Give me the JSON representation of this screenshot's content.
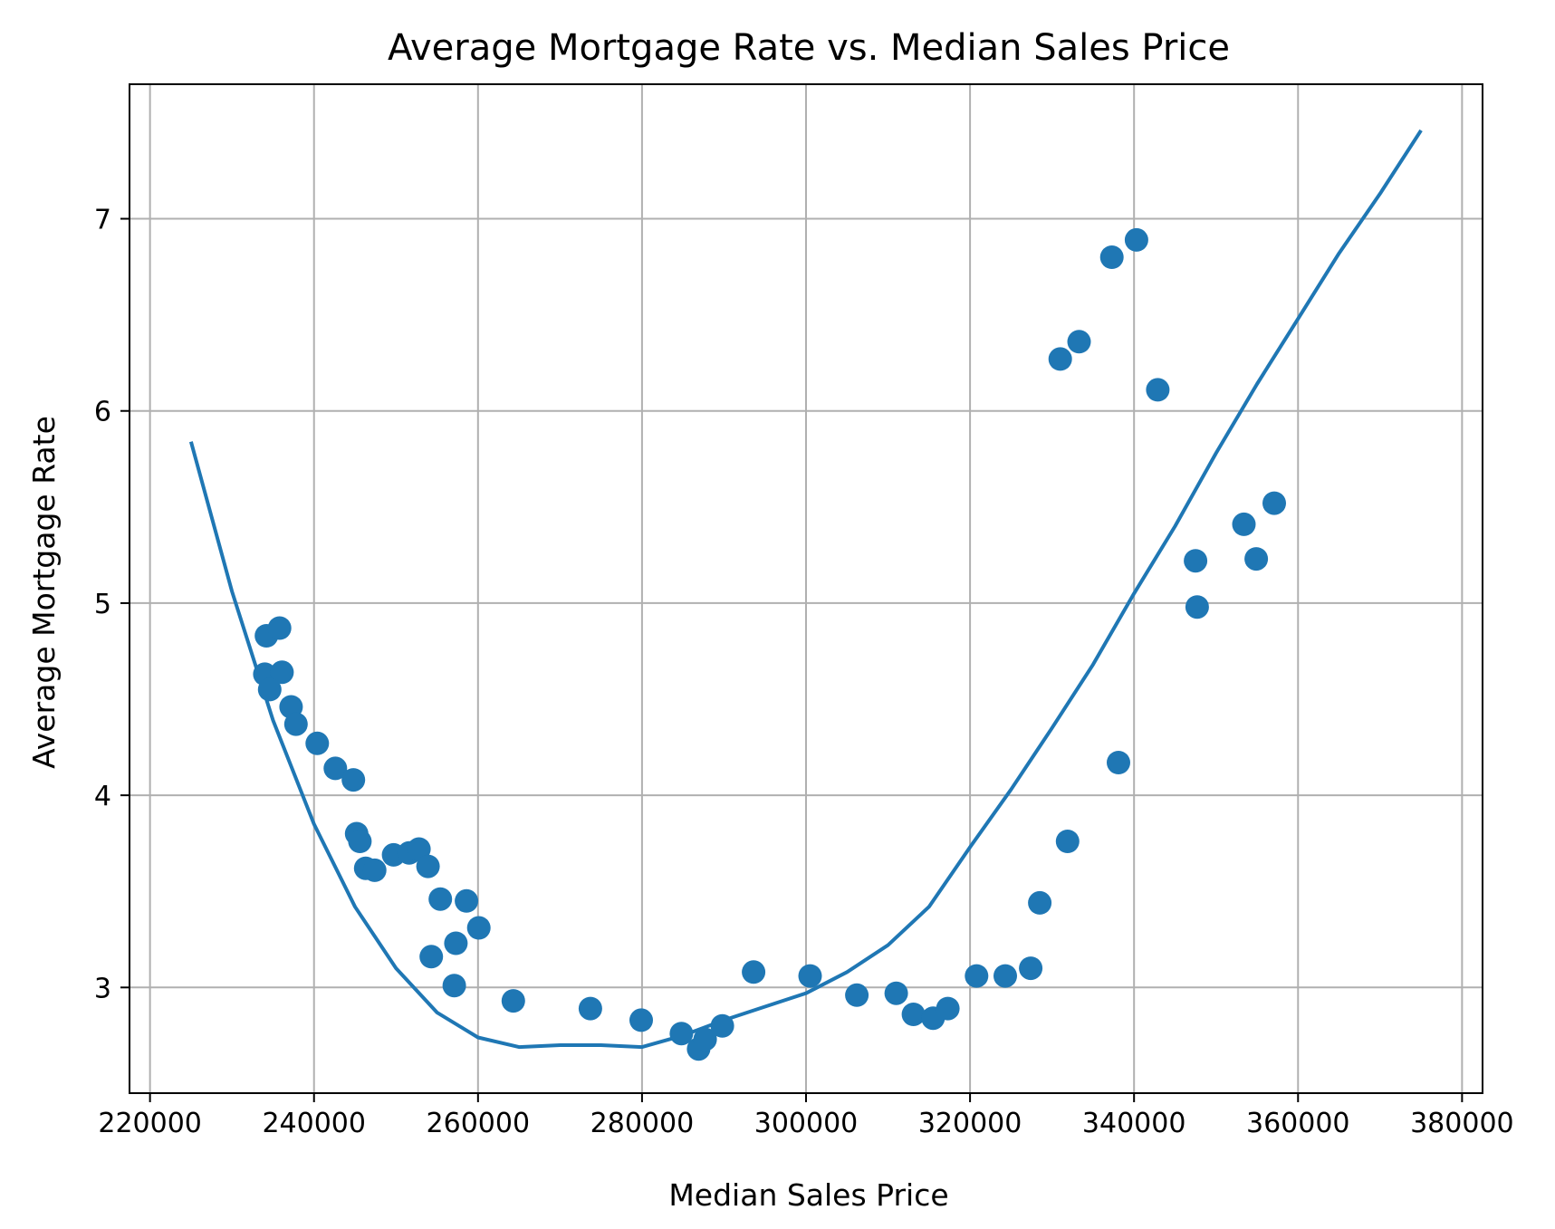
{
  "chart_data": {
    "type": "scatter",
    "title": "Average Mortgage Rate vs. Median Sales Price",
    "xlabel": "Median Sales Price",
    "ylabel": "Average Mortgage Rate",
    "xlim": [
      217500,
      382500
    ],
    "ylim": [
      2.45,
      7.7
    ],
    "xticks": [
      220000,
      240000,
      260000,
      280000,
      300000,
      320000,
      340000,
      360000,
      380000
    ],
    "yticks": [
      3,
      4,
      5,
      6,
      7
    ],
    "grid": true,
    "legend": "none",
    "colors": {
      "series": "#1f77b4",
      "grid": "#b0b0b0",
      "axis": "#000000",
      "background": "#ffffff"
    },
    "series": [
      {
        "kind": "points",
        "points": [
          [
            234200,
            4.83
          ],
          [
            235800,
            4.87
          ],
          [
            234000,
            4.63
          ],
          [
            236100,
            4.64
          ],
          [
            234600,
            4.55
          ],
          [
            237200,
            4.46
          ],
          [
            237800,
            4.37
          ],
          [
            240400,
            4.27
          ],
          [
            242600,
            4.14
          ],
          [
            244800,
            4.08
          ],
          [
            245200,
            3.8
          ],
          [
            245600,
            3.76
          ],
          [
            246300,
            3.62
          ],
          [
            247400,
            3.61
          ],
          [
            249700,
            3.69
          ],
          [
            251600,
            3.7
          ],
          [
            252800,
            3.72
          ],
          [
            253900,
            3.63
          ],
          [
            255400,
            3.46
          ],
          [
            258600,
            3.45
          ],
          [
            254300,
            3.16
          ],
          [
            257300,
            3.23
          ],
          [
            260100,
            3.31
          ],
          [
            257100,
            3.01
          ],
          [
            264300,
            2.93
          ],
          [
            273700,
            2.89
          ],
          [
            279900,
            2.83
          ],
          [
            284800,
            2.76
          ],
          [
            286900,
            2.68
          ],
          [
            287700,
            2.73
          ],
          [
            289800,
            2.8
          ],
          [
            293600,
            3.08
          ],
          [
            300500,
            3.06
          ],
          [
            306200,
            2.96
          ],
          [
            311000,
            2.97
          ],
          [
            313100,
            2.86
          ],
          [
            315500,
            2.84
          ],
          [
            317300,
            2.89
          ],
          [
            320800,
            3.06
          ],
          [
            324300,
            3.06
          ],
          [
            327400,
            3.1
          ],
          [
            328500,
            3.44
          ],
          [
            331000,
            6.27
          ],
          [
            331900,
            3.76
          ],
          [
            333300,
            6.36
          ],
          [
            337300,
            6.8
          ],
          [
            338100,
            4.17
          ],
          [
            340300,
            6.89
          ],
          [
            342900,
            6.11
          ],
          [
            347500,
            5.22
          ],
          [
            347700,
            4.98
          ],
          [
            353400,
            5.41
          ],
          [
            354900,
            5.23
          ],
          [
            357100,
            5.52
          ]
        ]
      },
      {
        "kind": "fit-line",
        "points": [
          [
            225000,
            5.84
          ],
          [
            230000,
            5.06
          ],
          [
            235000,
            4.39
          ],
          [
            240000,
            3.85
          ],
          [
            245000,
            3.42
          ],
          [
            250000,
            3.1
          ],
          [
            255000,
            2.87
          ],
          [
            260000,
            2.74
          ],
          [
            265000,
            2.69
          ],
          [
            270000,
            2.7
          ],
          [
            275000,
            2.7
          ],
          [
            280000,
            2.69
          ],
          [
            285000,
            2.75
          ],
          [
            290000,
            2.83
          ],
          [
            295000,
            2.9
          ],
          [
            300000,
            2.97
          ],
          [
            305000,
            3.08
          ],
          [
            310000,
            3.22
          ],
          [
            315000,
            3.42
          ],
          [
            320000,
            3.73
          ],
          [
            325000,
            4.03
          ],
          [
            330000,
            4.35
          ],
          [
            335000,
            4.68
          ],
          [
            340000,
            5.05
          ],
          [
            345000,
            5.4
          ],
          [
            350000,
            5.78
          ],
          [
            355000,
            6.14
          ],
          [
            360000,
            6.48
          ],
          [
            365000,
            6.82
          ],
          [
            370000,
            7.13
          ],
          [
            375000,
            7.46
          ]
        ]
      }
    ]
  }
}
